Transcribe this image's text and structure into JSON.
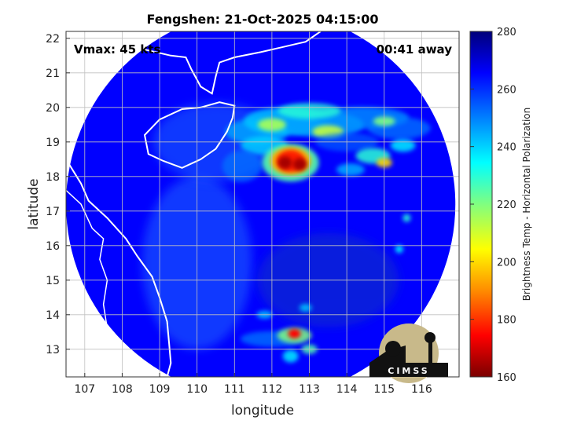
{
  "chart_data": {
    "type": "heatmap",
    "title": "Fengshen: 21-Oct-2025 04:15:00",
    "xlabel": "longitude",
    "ylabel": "latitude",
    "xlim": [
      106.5,
      117.0
    ],
    "ylim": [
      12.2,
      22.2
    ],
    "xticks": [
      107,
      108,
      109,
      110,
      111,
      112,
      113,
      114,
      115,
      116
    ],
    "yticks": [
      13,
      14,
      15,
      16,
      17,
      18,
      19,
      20,
      21,
      22
    ],
    "grid": true,
    "annotations": {
      "vmax": "Vmax: 45 kts",
      "timing": "00:41 away"
    },
    "colorbar": {
      "label": "Brightness Temp - Horizontal Polarization",
      "range": [
        160,
        280
      ],
      "ticks": [
        160,
        180,
        200,
        220,
        240,
        260,
        280
      ],
      "colors": [
        "#7a0000",
        "#ff0000",
        "#ff8c00",
        "#ffff00",
        "#80ff80",
        "#00ffff",
        "#0080ff",
        "#0000ff",
        "#00007a"
      ]
    },
    "swath": {
      "center_lon": 111.7,
      "center_lat": 17.2,
      "radius_deg": 5.2,
      "background_temp": 265
    },
    "features": [
      {
        "name": "deep convection core",
        "lon": 112.5,
        "lat": 18.4,
        "min_temp": 165
      },
      {
        "name": "northern rainband",
        "lon": 112.8,
        "lat": 19.4,
        "min_temp": 235
      },
      {
        "name": "eastern rainband",
        "lon": 114.8,
        "lat": 18.6,
        "min_temp": 225
      },
      {
        "name": "southern convection",
        "lon": 112.6,
        "lat": 13.4,
        "min_temp": 175
      }
    ]
  },
  "logo": {
    "text": "CIMSS"
  }
}
